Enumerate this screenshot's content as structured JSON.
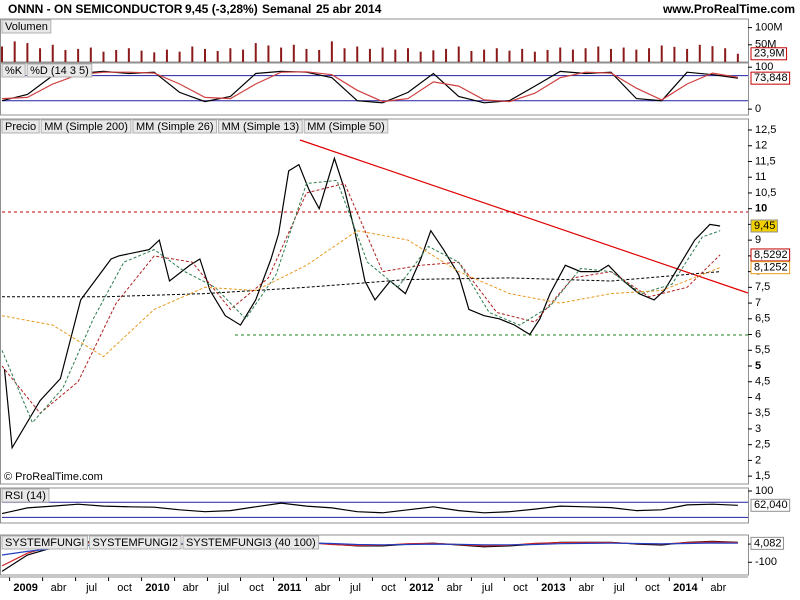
{
  "header": {
    "symbol": "ONNN - ON SEMICONDUCTOR",
    "change": "9,45 (-3,28%)",
    "period": "Semanal",
    "date": "25 abr 2014",
    "site": "www.ProRealTime.com"
  },
  "chart_data": [
    {
      "type": "bar",
      "title": "Volumen",
      "color": "#8b1a1a",
      "x": [
        0,
        5,
        10,
        15,
        20,
        25,
        30,
        35,
        40,
        45,
        50,
        55,
        60,
        65,
        70,
        75,
        80,
        85,
        90,
        95,
        100,
        105,
        110,
        115,
        120,
        125,
        130,
        135,
        140,
        145,
        150,
        155,
        160,
        165,
        170,
        175,
        180,
        185,
        190,
        195,
        200,
        205,
        210,
        215,
        220,
        225,
        230,
        235,
        240,
        245,
        250,
        255,
        260,
        265,
        270,
        275,
        280,
        285,
        290
      ],
      "values": [
        45,
        60,
        55,
        40,
        50,
        35,
        38,
        42,
        30,
        35,
        40,
        33,
        28,
        36,
        30,
        45,
        38,
        32,
        40,
        36,
        55,
        48,
        42,
        50,
        38,
        35,
        60,
        40,
        45,
        38,
        42,
        36,
        40,
        30,
        34,
        38,
        45,
        32,
        36,
        40,
        33,
        38,
        30,
        35,
        42,
        36,
        40,
        45,
        38,
        42,
        36,
        40,
        48,
        44,
        38,
        50,
        46,
        40,
        24
      ],
      "ylim": [
        0,
        125
      ],
      "yticks": [
        {
          "value": 100,
          "label": "100M"
        },
        {
          "value": 50,
          "label": "50M"
        }
      ],
      "current": {
        "value": 23.9,
        "label": "23,9M",
        "color": "#c00000"
      }
    },
    {
      "type": "line",
      "x": [
        0,
        10,
        20,
        30,
        40,
        50,
        60,
        70,
        80,
        90,
        100,
        110,
        120,
        130,
        140,
        150,
        160,
        170,
        180,
        190,
        200,
        210,
        220,
        230,
        240,
        250,
        260,
        270,
        280,
        290
      ],
      "series": [
        {
          "name": "%K",
          "color": "#000000",
          "values": [
            20,
            35,
            80,
            85,
            90,
            85,
            88,
            40,
            18,
            30,
            85,
            90,
            88,
            75,
            20,
            15,
            40,
            85,
            30,
            15,
            20,
            55,
            90,
            85,
            88,
            25,
            20,
            88,
            82,
            74
          ]
        },
        {
          "name": "%D (14 3 5)",
          "color": "#d04040",
          "values": [
            25,
            28,
            60,
            82,
            88,
            88,
            86,
            60,
            28,
            25,
            60,
            88,
            89,
            82,
            45,
            18,
            25,
            65,
            55,
            22,
            18,
            38,
            75,
            88,
            86,
            50,
            22,
            60,
            86,
            76
          ]
        }
      ],
      "ylim": [
        -14,
        110
      ],
      "yticks": [
        100,
        0
      ],
      "levels": [
        20,
        80
      ],
      "level_color": "#2020a0",
      "current": {
        "value": 73.848,
        "label": "73,848",
        "color": "#c00000"
      }
    },
    {
      "type": "line",
      "xlim": [
        0,
        294
      ],
      "xticks": [
        {
          "value": 3,
          "label": "2009"
        },
        {
          "value": 16,
          "label": "abr"
        },
        {
          "value": 29,
          "label": "jul"
        },
        {
          "value": 42,
          "label": "oct"
        },
        {
          "value": 55,
          "label": "2010"
        },
        {
          "value": 68,
          "label": "abr"
        },
        {
          "value": 81,
          "label": "jul"
        },
        {
          "value": 94,
          "label": "oct"
        },
        {
          "value": 107,
          "label": "2011"
        },
        {
          "value": 120,
          "label": "abr"
        },
        {
          "value": 133,
          "label": "jul"
        },
        {
          "value": 146,
          "label": "oct"
        },
        {
          "value": 159,
          "label": "2012"
        },
        {
          "value": 172,
          "label": "abr"
        },
        {
          "value": 185,
          "label": "jul"
        },
        {
          "value": 198,
          "label": "oct"
        },
        {
          "value": 211,
          "label": "2013"
        },
        {
          "value": 224,
          "label": "abr"
        },
        {
          "value": 237,
          "label": "jul"
        },
        {
          "value": 250,
          "label": "oct"
        },
        {
          "value": 263,
          "label": "2014"
        },
        {
          "value": 276,
          "label": "abr"
        }
      ],
      "ylim": [
        1.25,
        12.85
      ],
      "yticks": [
        {
          "value": 12.5,
          "label": "12,5"
        },
        12,
        {
          "value": 11.5,
          "label": "11,5"
        },
        11,
        {
          "value": 10.5,
          "label": "10,5"
        },
        10,
        {
          "value": 9.5,
          "label": "9,5"
        },
        9,
        {
          "value": 8.5,
          "label": "8,5"
        },
        8,
        {
          "value": 7.5,
          "label": "7,5"
        },
        7,
        {
          "value": 6.5,
          "label": "6,5"
        },
        6,
        {
          "value": 5.5,
          "label": "5,5"
        },
        5,
        {
          "value": 4.5,
          "label": "4,5"
        },
        4,
        {
          "value": 3.5,
          "label": "3,5"
        },
        3,
        {
          "value": 2.5,
          "label": "2,5"
        },
        2,
        {
          "value": 1.5,
          "label": "1,5"
        }
      ],
      "copyright": "© ProRealTime.com",
      "series": [
        {
          "name": "Precio",
          "color": "#000000",
          "x": [
            1,
            4,
            15,
            23,
            31,
            43,
            46,
            58,
            62,
            66,
            74,
            78,
            82,
            88,
            94,
            100,
            106,
            109,
            113,
            117,
            121,
            125,
            131,
            135,
            139,
            143,
            147,
            153,
            159,
            165,
            169,
            174,
            180,
            184,
            190,
            196,
            202,
            208,
            212,
            216,
            222,
            228,
            235,
            239,
            245,
            251,
            257,
            261,
            267,
            273,
            279,
            283
          ],
          "values": [
            4.9,
            2.4,
            3.9,
            4.6,
            7.1,
            8.4,
            8.5,
            8.7,
            9.0,
            7.7,
            8.2,
            8.4,
            7.4,
            6.6,
            6.3,
            7.1,
            8.4,
            9.2,
            11.2,
            11.4,
            10.6,
            10.0,
            11.6,
            10.6,
            9.3,
            7.7,
            7.1,
            7.7,
            7.3,
            8.4,
            9.3,
            8.7,
            7.9,
            6.8,
            6.6,
            6.5,
            6.3,
            6.0,
            6.5,
            7.3,
            8.2,
            8.0,
            8.0,
            8.2,
            7.7,
            7.3,
            7.1,
            7.4,
            8.2,
            9.0,
            9.5,
            9.45
          ],
          "last": {
            "value": 9.45,
            "label": "9,45",
            "color": "#f2d000"
          }
        },
        {
          "name": "MM (Simple 200)",
          "color": "#000000",
          "dash": true,
          "x": [
            0,
            40,
            80,
            120,
            160,
            200,
            240,
            283
          ],
          "values": [
            7.2,
            7.2,
            7.3,
            7.5,
            7.75,
            7.8,
            7.7,
            8.0
          ]
        },
        {
          "name": "MM (Simple 26)",
          "color": "#b02020",
          "dash": true,
          "x": [
            0,
            15,
            30,
            45,
            60,
            75,
            90,
            105,
            120,
            135,
            150,
            165,
            180,
            195,
            210,
            225,
            240,
            255,
            270,
            283
          ],
          "values": [
            5.0,
            3.5,
            4.5,
            7.0,
            8.5,
            8.3,
            6.8,
            7.8,
            10.5,
            10.8,
            8.0,
            8.2,
            8.3,
            6.7,
            6.4,
            7.8,
            8.0,
            7.2,
            7.5,
            8.53
          ],
          "last": {
            "value": 8.5292,
            "label": "8,5292",
            "color": "#c00000"
          }
        },
        {
          "name": "MM (Simple 13)",
          "color": "#2e7d4f",
          "dash": true,
          "x": [
            0,
            12,
            24,
            36,
            48,
            60,
            72,
            84,
            96,
            108,
            120,
            132,
            144,
            156,
            168,
            180,
            192,
            204,
            216,
            228,
            240,
            252,
            264,
            276,
            283
          ],
          "values": [
            5.5,
            3.2,
            4.3,
            6.5,
            8.3,
            8.7,
            8.0,
            7.5,
            6.5,
            7.9,
            10.8,
            10.9,
            8.3,
            7.5,
            8.8,
            8.3,
            6.7,
            6.3,
            6.9,
            8.1,
            8.0,
            7.3,
            7.6,
            9.1,
            9.3
          ]
        },
        {
          "name": "MM (Simple 50)",
          "color": "#e89a20",
          "dash": true,
          "x": [
            0,
            20,
            40,
            60,
            80,
            100,
            120,
            140,
            160,
            180,
            200,
            220,
            240,
            260,
            283
          ],
          "values": [
            6.6,
            6.3,
            5.3,
            6.8,
            7.5,
            7.4,
            8.2,
            9.3,
            9.0,
            8.0,
            7.3,
            7.0,
            7.3,
            7.4,
            8.13
          ],
          "last": {
            "value": 8.1252,
            "label": "8,1252",
            "color": "#e89a20"
          }
        }
      ]
    },
    {
      "type": "line",
      "title": "RSI (14)",
      "x": [
        0,
        10,
        20,
        30,
        40,
        50,
        60,
        70,
        80,
        90,
        100,
        110,
        120,
        130,
        140,
        150,
        160,
        170,
        180,
        190,
        200,
        210,
        220,
        230,
        240,
        250,
        260,
        270,
        280,
        290
      ],
      "series": [
        {
          "color": "#000000",
          "values": [
            40,
            55,
            60,
            65,
            60,
            58,
            57,
            50,
            45,
            48,
            58,
            68,
            60,
            55,
            45,
            42,
            50,
            58,
            48,
            42,
            45,
            52,
            60,
            58,
            56,
            48,
            50,
            63,
            65,
            62
          ]
        }
      ],
      "ylim": [
        15,
        108
      ],
      "yticks": [
        100
      ],
      "levels": [
        30,
        70
      ],
      "level_color": "#2020a0",
      "current": {
        "value": 62.04,
        "label": "62,040",
        "color": "#000000"
      }
    },
    {
      "type": "line",
      "x": [
        0,
        10,
        20,
        30,
        40,
        50,
        60,
        70,
        80,
        90,
        100,
        110,
        120,
        130,
        140,
        150,
        160,
        170,
        180,
        190,
        200,
        210,
        220,
        230,
        240,
        250,
        260,
        270,
        280,
        290
      ],
      "series": [
        {
          "name": "SYSTEMFUNGI",
          "color": "#000000",
          "values": [
            -150,
            -60,
            -20,
            10,
            15,
            10,
            10,
            0,
            -5,
            0,
            10,
            20,
            10,
            0,
            -10,
            -10,
            0,
            5,
            -5,
            -15,
            -10,
            0,
            10,
            10,
            10,
            0,
            -5,
            10,
            15,
            10
          ]
        },
        {
          "name": "SYSTEMFUNGI2",
          "color": "#d02020",
          "values": [
            -120,
            -50,
            -10,
            5,
            10,
            12,
            8,
            2,
            -2,
            3,
            12,
            15,
            8,
            -2,
            -8,
            -6,
            2,
            4,
            -3,
            -10,
            -6,
            4,
            8,
            9,
            8,
            2,
            0,
            8,
            12,
            8
          ]
        },
        {
          "name": "SYSTEMFUNGI3 (40 100)",
          "color": "#2040c0",
          "values": [
            -60,
            -40,
            -25,
            -10,
            -2,
            2,
            4,
            3,
            1,
            0,
            3,
            6,
            6,
            3,
            -2,
            -4,
            -2,
            0,
            -1,
            -4,
            -4,
            -2,
            2,
            4,
            5,
            3,
            1,
            3,
            6,
            5
          ]
        }
      ],
      "ylim": [
        -170,
        50
      ],
      "yticks": [
        0,
        -100
      ],
      "current": {
        "value": 4.082,
        "label": "4,082",
        "color": "#000000"
      }
    }
  ]
}
